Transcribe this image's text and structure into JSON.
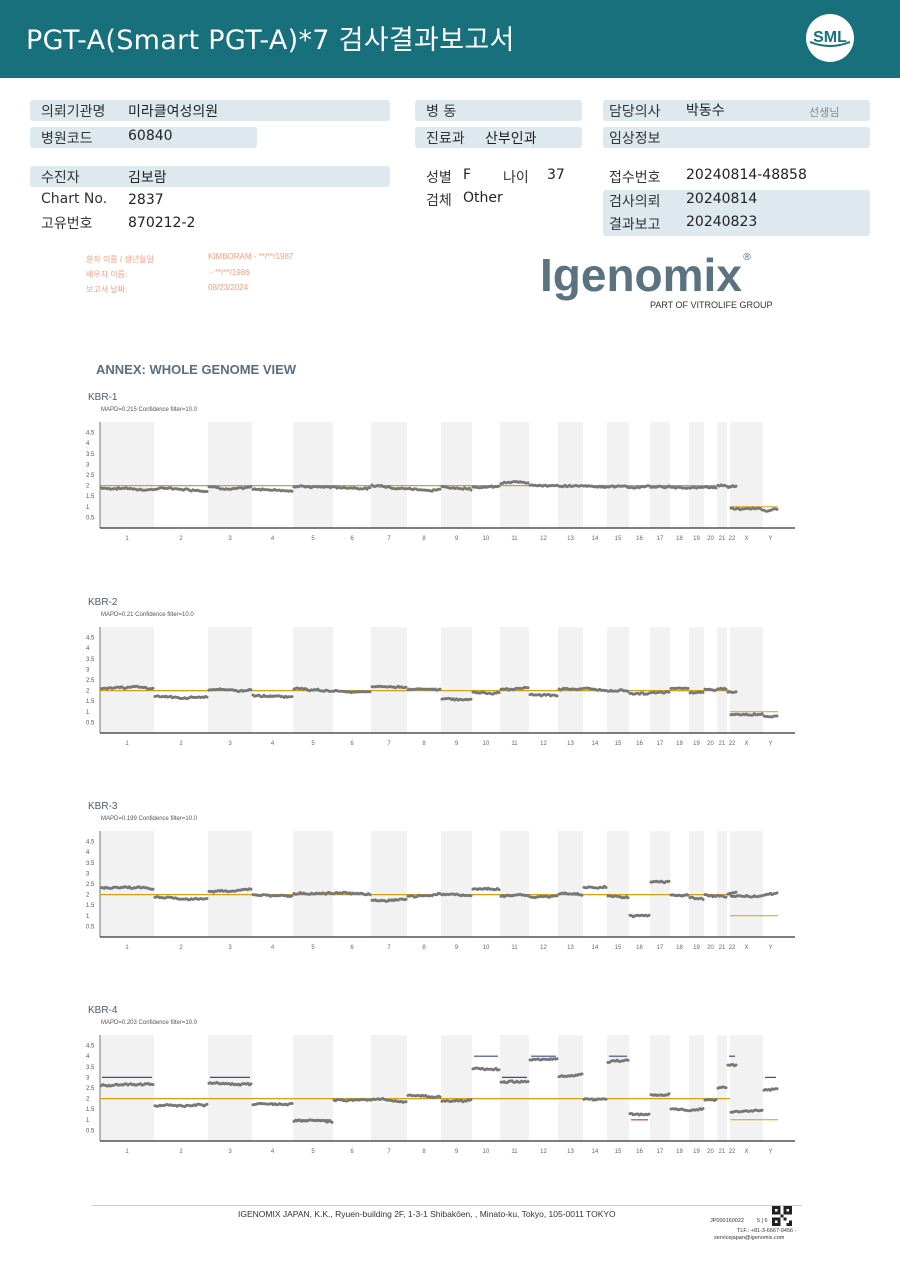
{
  "header": {
    "title": "PGT-A(Smart  PGT-A)*7 검사결과보고서",
    "logo_text": "SML"
  },
  "info": {
    "institution_label": "의뢰기관명",
    "institution_value": "미라클여성의원",
    "hospital_code_label": "병원코드",
    "hospital_code_value": "60840",
    "ward_label": "병  동",
    "ward_value": "",
    "dept_label": "진료과",
    "dept_value": "산부인과",
    "doctor_label": "담당의사",
    "doctor_value": "박동수",
    "doctor_suffix": "선생님",
    "clinical_label": "임상정보",
    "clinical_value": "",
    "patient_label": "수진자",
    "patient_value": "김보람",
    "chart_label": "Chart No.",
    "chart_value": "2837",
    "unique_label": "고유번호",
    "unique_value": "870212-2",
    "sex_label": "성별",
    "sex_value": "F",
    "age_label": "나이",
    "age_value": "37",
    "specimen_label": "검체",
    "specimen_value": "Other",
    "receipt_label": "접수번호",
    "receipt_value": "20240814-48858",
    "request_label": "검사의뢰",
    "request_value": "20240814",
    "report_label": "결과보고",
    "report_value": "20240823"
  },
  "patient_box": {
    "name_label": "환자 이름 / 생년월일",
    "name_value": "KIMBORAM - **/**/1987",
    "spouse_label": "배우자 이름:",
    "spouse_value": "- **/**/1986",
    "date_label": "보고서 날짜:",
    "date_value": "08/23/2024"
  },
  "brand": {
    "name": "Igenomix",
    "tagline": "PART OF VITROLIFE GROUP"
  },
  "annex_title": "ANNEX: WHOLE GENOME VIEW",
  "axis": {
    "y_ticks": [
      "4.5",
      "4",
      "3.5",
      "3",
      "2.5",
      "2",
      "1.5",
      "1",
      "0.5"
    ],
    "chromosomes": [
      "1",
      "2",
      "3",
      "4",
      "5",
      "6",
      "7",
      "8",
      "9",
      "10",
      "11",
      "12",
      "13",
      "14",
      "15",
      "16",
      "17",
      "18",
      "19",
      "20",
      "21",
      "22",
      "X",
      "Y"
    ]
  },
  "chart_data": [
    {
      "type": "scatter",
      "title": "KBR-1",
      "subtitle": "MAPD=0.215 Confidence filter=10.0",
      "ylim": [
        0,
        5
      ],
      "baseline": 2,
      "segments": [
        {
          "chr": "1",
          "y": 1.9
        },
        {
          "chr": "2",
          "y": 1.85
        },
        {
          "chr": "3",
          "y": 1.95
        },
        {
          "chr": "4",
          "y": 1.85
        },
        {
          "chr": "5",
          "y": 1.95
        },
        {
          "chr": "6",
          "y": 1.9
        },
        {
          "chr": "7",
          "y": 2.0
        },
        {
          "chr": "8",
          "y": 1.85
        },
        {
          "chr": "9",
          "y": 1.95
        },
        {
          "chr": "10",
          "y": 1.95
        },
        {
          "chr": "11",
          "y": 2.1
        },
        {
          "chr": "12",
          "y": 2.05
        },
        {
          "chr": "13",
          "y": 1.95
        },
        {
          "chr": "14",
          "y": 2.0
        },
        {
          "chr": "15",
          "y": 1.95
        },
        {
          "chr": "16",
          "y": 1.9
        },
        {
          "chr": "17",
          "y": 1.9
        },
        {
          "chr": "18",
          "y": 1.95
        },
        {
          "chr": "19",
          "y": 1.9
        },
        {
          "chr": "20",
          "y": 1.95
        },
        {
          "chr": "21",
          "y": 2.0
        },
        {
          "chr": "22",
          "y": 1.95
        },
        {
          "chr": "X",
          "y": 0.9
        },
        {
          "chr": "Y",
          "y": 0.85
        }
      ],
      "reference_lines": []
    },
    {
      "type": "scatter",
      "title": "KBR-2",
      "subtitle": "MAPD=0.21 Confidence filter=10.0",
      "ylim": [
        0,
        5
      ],
      "baseline": 2,
      "segments": [
        {
          "chr": "1",
          "y": 2.1
        },
        {
          "chr": "2",
          "y": 1.75
        },
        {
          "chr": "3",
          "y": 2.0
        },
        {
          "chr": "4",
          "y": 1.75
        },
        {
          "chr": "5",
          "y": 2.05
        },
        {
          "chr": "6",
          "y": 1.95
        },
        {
          "chr": "7",
          "y": 2.15
        },
        {
          "chr": "8",
          "y": 2.05
        },
        {
          "chr": "9",
          "y": 1.6
        },
        {
          "chr": "10",
          "y": 1.9
        },
        {
          "chr": "11",
          "y": 2.05
        },
        {
          "chr": "12",
          "y": 1.8
        },
        {
          "chr": "13",
          "y": 2.05
        },
        {
          "chr": "14",
          "y": 2.1
        },
        {
          "chr": "15",
          "y": 1.95
        },
        {
          "chr": "16",
          "y": 1.85
        },
        {
          "chr": "17",
          "y": 1.9
        },
        {
          "chr": "18",
          "y": 2.1
        },
        {
          "chr": "19",
          "y": 1.9
        },
        {
          "chr": "20",
          "y": 2.05
        },
        {
          "chr": "21",
          "y": 2.1
        },
        {
          "chr": "22",
          "y": 1.95
        },
        {
          "chr": "X",
          "y": 0.85
        },
        {
          "chr": "Y",
          "y": 0.8
        }
      ],
      "reference_lines": []
    },
    {
      "type": "scatter",
      "title": "KBR-3",
      "subtitle": "MAPD=0.199 Confidence filter=10.0",
      "ylim": [
        0,
        5
      ],
      "baseline": 2,
      "segments": [
        {
          "chr": "1",
          "y": 2.3
        },
        {
          "chr": "2",
          "y": 1.85
        },
        {
          "chr": "3",
          "y": 2.15
        },
        {
          "chr": "4",
          "y": 2.0
        },
        {
          "chr": "5",
          "y": 2.05
        },
        {
          "chr": "6",
          "y": 2.05
        },
        {
          "chr": "7",
          "y": 1.75
        },
        {
          "chr": "8",
          "y": 1.9
        },
        {
          "chr": "9",
          "y": 2.0
        },
        {
          "chr": "10",
          "y": 2.3
        },
        {
          "chr": "11",
          "y": 1.95
        },
        {
          "chr": "12",
          "y": 1.9
        },
        {
          "chr": "13",
          "y": 2.05
        },
        {
          "chr": "14",
          "y": 2.35
        },
        {
          "chr": "15",
          "y": 1.95
        },
        {
          "chr": "16",
          "y": 1.0
        },
        {
          "chr": "17",
          "y": 2.6
        },
        {
          "chr": "18",
          "y": 2.0
        },
        {
          "chr": "19",
          "y": 1.85
        },
        {
          "chr": "20",
          "y": 2.0
        },
        {
          "chr": "21",
          "y": 1.95
        },
        {
          "chr": "22",
          "y": 2.05
        },
        {
          "chr": "X",
          "y": 1.9
        },
        {
          "chr": "Y",
          "y": 2.0
        }
      ],
      "reference_lines": [
        {
          "chr": "16",
          "y": 1.0,
          "color": "#cc3333"
        }
      ]
    },
    {
      "type": "scatter",
      "title": "KBR-4",
      "subtitle": "MAPD=0.203 Confidence filter=10.0",
      "ylim": [
        0,
        5
      ],
      "baseline": 2,
      "segments": [
        {
          "chr": "1",
          "y": 2.65
        },
        {
          "chr": "2",
          "y": 1.65
        },
        {
          "chr": "3",
          "y": 2.7
        },
        {
          "chr": "4",
          "y": 1.75
        },
        {
          "chr": "5",
          "y": 0.95
        },
        {
          "chr": "6",
          "y": 1.9
        },
        {
          "chr": "7",
          "y": 1.95
        },
        {
          "chr": "8",
          "y": 2.2
        },
        {
          "chr": "9",
          "y": 1.9
        },
        {
          "chr": "10",
          "y": 3.4
        },
        {
          "chr": "11",
          "y": 2.8
        },
        {
          "chr": "12",
          "y": 3.8
        },
        {
          "chr": "13",
          "y": 3.05
        },
        {
          "chr": "14",
          "y": 1.95
        },
        {
          "chr": "15",
          "y": 3.7
        },
        {
          "chr": "16",
          "y": 1.3
        },
        {
          "chr": "17",
          "y": 2.2
        },
        {
          "chr": "18",
          "y": 1.55
        },
        {
          "chr": "19",
          "y": 1.4
        },
        {
          "chr": "20",
          "y": 1.95
        },
        {
          "chr": "21",
          "y": 2.5
        },
        {
          "chr": "22",
          "y": 3.6
        },
        {
          "chr": "X",
          "y": 1.35
        },
        {
          "chr": "Y",
          "y": 2.4
        }
      ],
      "reference_lines": [
        {
          "chr": "1",
          "y": 3.0,
          "color": "#3a4a9a"
        },
        {
          "chr": "3",
          "y": 3.0,
          "color": "#3a4a9a"
        },
        {
          "chr": "5",
          "y": 1.0,
          "color": "#cc3333"
        },
        {
          "chr": "10",
          "y": 4.0,
          "color": "#3a4a9a"
        },
        {
          "chr": "11",
          "y": 3.0,
          "color": "#3a4a9a"
        },
        {
          "chr": "12",
          "y": 4.0,
          "color": "#3a4a9a"
        },
        {
          "chr": "15",
          "y": 4.0,
          "color": "#3a4a9a"
        },
        {
          "chr": "16",
          "y": 1.0,
          "color": "#cc3333"
        },
        {
          "chr": "22",
          "y": 4.0,
          "color": "#3a4a9a"
        },
        {
          "chr": "Y",
          "y": 3.0,
          "color": "#3a4a9a"
        }
      ]
    }
  ],
  "footer": {
    "address": "IGENOMIX JAPAN, K.K., Ryuen-building 2F, 1-3-1 Shibakōen, , Minato-ku, Tokyo, 105-0011 TOKYO",
    "doc_code": "JP000160022",
    "page": "5 | 6",
    "phone": "TLF.: +81-3-6667-0456 -",
    "email": "servicejapan@igenomix.com"
  },
  "colors": {
    "header": "#17707c",
    "field_bg": "#dde9ee",
    "baseline": "#d4a017",
    "points": "#777777",
    "band": "#f2f2f2"
  }
}
